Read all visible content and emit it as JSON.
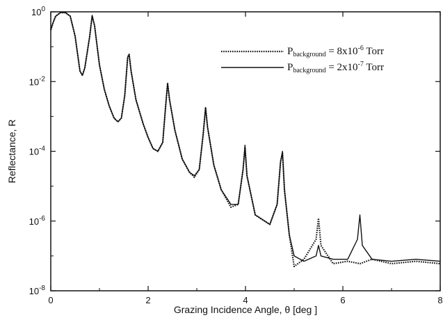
{
  "chart_data": {
    "type": "line",
    "xlabel": "Grazing Incidence Angle, θ [deg ]",
    "ylabel": "Reflectance, R",
    "xlim": [
      0,
      8
    ],
    "ylim": [
      1e-08,
      1
    ],
    "yscale": "log",
    "x_ticks": [
      0,
      2,
      4,
      6,
      8
    ],
    "x_tick_labels": [
      "0",
      "2",
      "4",
      "6",
      "8"
    ],
    "y_ticks": [
      {
        "base": "10",
        "exp": "0",
        "value": 1
      },
      {
        "base": "10",
        "exp": "-2",
        "value": 0.01
      },
      {
        "base": "10",
        "exp": "-4",
        "value": 0.0001
      },
      {
        "base": "10",
        "exp": "-6",
        "value": 1e-06
      },
      {
        "base": "10",
        "exp": "-8",
        "value": 1e-08
      }
    ],
    "grid": false,
    "legend_position": "top-right",
    "series": [
      {
        "name": "P_background = 8x10^-6 Torr",
        "legend": {
          "p": "P",
          "sub": "background",
          "mid": " = 8x10",
          "sup": "-6",
          "tail": " Torr"
        },
        "style": "dotted",
        "points": [
          [
            0.0,
            0.3
          ],
          [
            0.05,
            0.5
          ],
          [
            0.1,
            0.75
          ],
          [
            0.2,
            0.95
          ],
          [
            0.3,
            0.95
          ],
          [
            0.4,
            0.75
          ],
          [
            0.5,
            0.2
          ],
          [
            0.6,
            0.02
          ],
          [
            0.65,
            0.015
          ],
          [
            0.7,
            0.025
          ],
          [
            0.8,
            0.2
          ],
          [
            0.85,
            0.75
          ],
          [
            0.9,
            0.4
          ],
          [
            1.0,
            0.03
          ],
          [
            1.1,
            0.006
          ],
          [
            1.2,
            0.002
          ],
          [
            1.3,
            0.0009
          ],
          [
            1.38,
            0.0007
          ],
          [
            1.45,
            0.0009
          ],
          [
            1.52,
            0.004
          ],
          [
            1.58,
            0.05
          ],
          [
            1.61,
            0.06
          ],
          [
            1.65,
            0.02
          ],
          [
            1.75,
            0.003
          ],
          [
            1.9,
            0.0006
          ],
          [
            2.0,
            0.00025
          ],
          [
            2.1,
            0.00012
          ],
          [
            2.2,
            0.0001
          ],
          [
            2.3,
            0.00018
          ],
          [
            2.36,
            0.002
          ],
          [
            2.4,
            0.009
          ],
          [
            2.44,
            0.003
          ],
          [
            2.55,
            0.0004
          ],
          [
            2.7,
            6e-05
          ],
          [
            2.85,
            2.5e-05
          ],
          [
            2.95,
            1.8e-05
          ],
          [
            3.05,
            3e-05
          ],
          [
            3.13,
            0.0003
          ],
          [
            3.18,
            0.0018
          ],
          [
            3.22,
            0.0005
          ],
          [
            3.35,
            4e-05
          ],
          [
            3.5,
            8e-06
          ],
          [
            3.7,
            2.5e-06
          ],
          [
            3.85,
            3e-06
          ],
          [
            3.95,
            3e-05
          ],
          [
            3.99,
            0.00013
          ],
          [
            4.03,
            2e-05
          ],
          [
            4.2,
            1.5e-06
          ],
          [
            4.5,
            8e-07
          ],
          [
            4.65,
            3e-06
          ],
          [
            4.72,
            5e-05
          ],
          [
            4.76,
            9e-05
          ],
          [
            4.8,
            8e-06
          ],
          [
            4.9,
            4e-07
          ],
          [
            5.0,
            5e-08
          ],
          [
            5.2,
            8e-08
          ],
          [
            5.45,
            3e-07
          ],
          [
            5.5,
            1.2e-06
          ],
          [
            5.55,
            2e-07
          ],
          [
            5.8,
            6e-08
          ],
          [
            6.1,
            7e-08
          ],
          [
            6.35,
            6e-08
          ],
          [
            6.6,
            8e-08
          ],
          [
            7.0,
            6e-08
          ],
          [
            7.5,
            7e-08
          ],
          [
            8.0,
            6e-08
          ]
        ]
      },
      {
        "name": "P_background = 2x10^-7 Torr",
        "legend": {
          "p": "P",
          "sub": "background",
          "mid": " = 2x10",
          "sup": "-7",
          "tail": " Torr"
        },
        "style": "solid",
        "points": [
          [
            0.0,
            0.3
          ],
          [
            0.05,
            0.5
          ],
          [
            0.1,
            0.75
          ],
          [
            0.2,
            0.95
          ],
          [
            0.3,
            0.95
          ],
          [
            0.4,
            0.75
          ],
          [
            0.5,
            0.2
          ],
          [
            0.6,
            0.02
          ],
          [
            0.65,
            0.015
          ],
          [
            0.7,
            0.025
          ],
          [
            0.8,
            0.2
          ],
          [
            0.85,
            0.8
          ],
          [
            0.9,
            0.4
          ],
          [
            1.0,
            0.03
          ],
          [
            1.1,
            0.006
          ],
          [
            1.2,
            0.002
          ],
          [
            1.3,
            0.0009
          ],
          [
            1.38,
            0.0007
          ],
          [
            1.45,
            0.0009
          ],
          [
            1.52,
            0.004
          ],
          [
            1.58,
            0.05
          ],
          [
            1.61,
            0.06
          ],
          [
            1.65,
            0.02
          ],
          [
            1.75,
            0.003
          ],
          [
            1.9,
            0.0006
          ],
          [
            2.0,
            0.00025
          ],
          [
            2.1,
            0.00012
          ],
          [
            2.2,
            0.0001
          ],
          [
            2.3,
            0.00018
          ],
          [
            2.36,
            0.002
          ],
          [
            2.4,
            0.009
          ],
          [
            2.44,
            0.003
          ],
          [
            2.55,
            0.0004
          ],
          [
            2.7,
            6e-05
          ],
          [
            2.85,
            2.5e-05
          ],
          [
            2.95,
            2e-05
          ],
          [
            3.05,
            3e-05
          ],
          [
            3.13,
            0.0003
          ],
          [
            3.18,
            0.0018
          ],
          [
            3.22,
            0.0005
          ],
          [
            3.35,
            4e-05
          ],
          [
            3.5,
            8e-06
          ],
          [
            3.7,
            3e-06
          ],
          [
            3.85,
            3e-06
          ],
          [
            3.95,
            3e-05
          ],
          [
            3.99,
            0.00015
          ],
          [
            4.03,
            2e-05
          ],
          [
            4.2,
            1.5e-06
          ],
          [
            4.5,
            8e-07
          ],
          [
            4.65,
            3e-06
          ],
          [
            4.72,
            5e-05
          ],
          [
            4.76,
            0.0001
          ],
          [
            4.8,
            8e-06
          ],
          [
            4.9,
            4e-07
          ],
          [
            5.0,
            1e-07
          ],
          [
            5.2,
            7e-08
          ],
          [
            5.45,
            1e-07
          ],
          [
            5.5,
            2e-07
          ],
          [
            5.55,
            1e-07
          ],
          [
            5.8,
            8e-08
          ],
          [
            6.1,
            8e-08
          ],
          [
            6.3,
            3e-07
          ],
          [
            6.35,
            1.5e-06
          ],
          [
            6.4,
            2e-07
          ],
          [
            6.6,
            8e-08
          ],
          [
            7.0,
            7e-08
          ],
          [
            7.5,
            8e-08
          ],
          [
            8.0,
            7e-08
          ]
        ]
      }
    ]
  }
}
